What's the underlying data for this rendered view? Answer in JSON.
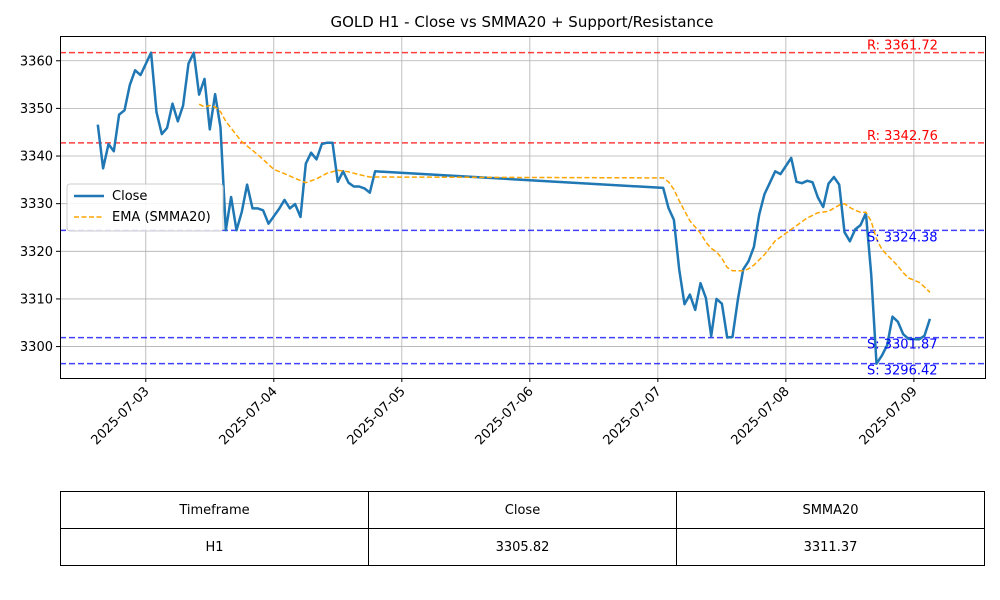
{
  "chart_data": {
    "type": "line",
    "title": "GOLD H1 - Close vs SMMA20 + Support/Resistance",
    "xlabel": "",
    "ylabel": "",
    "x_ticks": [
      "2025-07-03",
      "2025-07-04",
      "2025-07-05",
      "2025-07-06",
      "2025-07-07",
      "2025-07-08",
      "2025-07-09"
    ],
    "y_ticks": [
      3300,
      3310,
      3320,
      3330,
      3340,
      3350,
      3360
    ],
    "xlim": [
      "2025-07-02 07:55",
      "2025-07-09 13:20"
    ],
    "ylim": [
      3293.4,
      3365.2
    ],
    "grid": true,
    "legend_position": "center-left",
    "series": [
      {
        "name": "Close",
        "color": "#1f77b4",
        "style": "solid",
        "points": [
          [
            "2025-07-02 15:00",
            3346.6
          ],
          [
            "2025-07-02 16:00",
            3337.4
          ],
          [
            "2025-07-02 17:00",
            3342.5
          ],
          [
            "2025-07-02 18:00",
            3341.0
          ],
          [
            "2025-07-02 19:00",
            3348.7
          ],
          [
            "2025-07-02 20:00",
            3349.6
          ],
          [
            "2025-07-02 21:00",
            3354.9
          ],
          [
            "2025-07-02 22:00",
            3358.0
          ],
          [
            "2025-07-02 23:00",
            3357.0
          ],
          [
            "2025-07-03 01:00",
            3361.7
          ],
          [
            "2025-07-03 02:00",
            3349.2
          ],
          [
            "2025-07-03 03:00",
            3344.6
          ],
          [
            "2025-07-03 04:00",
            3345.9
          ],
          [
            "2025-07-03 05:00",
            3351.0
          ],
          [
            "2025-07-03 06:00",
            3347.3
          ],
          [
            "2025-07-03 07:00",
            3350.6
          ],
          [
            "2025-07-03 08:00",
            3359.4
          ],
          [
            "2025-07-03 09:00",
            3361.7
          ],
          [
            "2025-07-03 10:00",
            3352.9
          ],
          [
            "2025-07-03 11:00",
            3356.2
          ],
          [
            "2025-07-03 12:00",
            3345.6
          ],
          [
            "2025-07-03 13:00",
            3353.0
          ],
          [
            "2025-07-03 14:00",
            3346.0
          ],
          [
            "2025-07-03 15:00",
            3324.4
          ],
          [
            "2025-07-03 16:00",
            3331.4
          ],
          [
            "2025-07-03 17:00",
            3324.4
          ],
          [
            "2025-07-03 18:00",
            3328.3
          ],
          [
            "2025-07-03 19:00",
            3334.0
          ],
          [
            "2025-07-03 20:00",
            3329.0
          ],
          [
            "2025-07-03 21:00",
            3329.0
          ],
          [
            "2025-07-03 22:00",
            3328.6
          ],
          [
            "2025-07-03 23:00",
            3325.8
          ],
          [
            "2025-07-04 01:00",
            3328.9
          ],
          [
            "2025-07-04 02:00",
            3330.8
          ],
          [
            "2025-07-04 03:00",
            3329.0
          ],
          [
            "2025-07-04 04:00",
            3329.9
          ],
          [
            "2025-07-04 05:00",
            3327.2
          ],
          [
            "2025-07-04 06:00",
            3338.4
          ],
          [
            "2025-07-04 07:00",
            3340.7
          ],
          [
            "2025-07-04 08:00",
            3339.3
          ],
          [
            "2025-07-04 09:00",
            3342.5
          ],
          [
            "2025-07-04 10:00",
            3342.8
          ],
          [
            "2025-07-04 11:00",
            3342.8
          ],
          [
            "2025-07-04 12:00",
            3334.6
          ],
          [
            "2025-07-04 13:00",
            3336.8
          ],
          [
            "2025-07-04 14:00",
            3334.4
          ],
          [
            "2025-07-04 15:00",
            3333.6
          ],
          [
            "2025-07-04 16:00",
            3333.6
          ],
          [
            "2025-07-04 17:00",
            3333.2
          ],
          [
            "2025-07-04 18:00",
            3332.3
          ],
          [
            "2025-07-04 19:00",
            3336.8
          ],
          [
            "2025-07-07 01:00",
            3333.3
          ],
          [
            "2025-07-07 02:00",
            3329.1
          ],
          [
            "2025-07-07 03:00",
            3326.6
          ],
          [
            "2025-07-07 04:00",
            3316.2
          ],
          [
            "2025-07-07 05:00",
            3308.9
          ],
          [
            "2025-07-07 06:00",
            3310.9
          ],
          [
            "2025-07-07 07:00",
            3307.7
          ],
          [
            "2025-07-07 08:00",
            3313.3
          ],
          [
            "2025-07-07 09:00",
            3310.2
          ],
          [
            "2025-07-07 10:00",
            3302.2
          ],
          [
            "2025-07-07 11:00",
            3310.0
          ],
          [
            "2025-07-07 12:00",
            3309.0
          ],
          [
            "2025-07-07 13:00",
            3301.9
          ],
          [
            "2025-07-07 14:00",
            3302.0
          ],
          [
            "2025-07-07 15:00",
            3309.9
          ],
          [
            "2025-07-07 16:00",
            3316.2
          ],
          [
            "2025-07-07 17:00",
            3317.9
          ],
          [
            "2025-07-07 18:00",
            3320.9
          ],
          [
            "2025-07-07 19:00",
            3327.7
          ],
          [
            "2025-07-07 20:00",
            3332.0
          ],
          [
            "2025-07-07 21:00",
            3334.4
          ],
          [
            "2025-07-07 22:00",
            3336.8
          ],
          [
            "2025-07-07 23:00",
            3336.2
          ],
          [
            "2025-07-08 01:00",
            3339.6
          ],
          [
            "2025-07-08 02:00",
            3334.6
          ],
          [
            "2025-07-08 03:00",
            3334.3
          ],
          [
            "2025-07-08 04:00",
            3334.8
          ],
          [
            "2025-07-08 05:00",
            3334.5
          ],
          [
            "2025-07-08 06:00",
            3331.3
          ],
          [
            "2025-07-08 07:00",
            3329.3
          ],
          [
            "2025-07-08 08:00",
            3334.2
          ],
          [
            "2025-07-08 09:00",
            3335.6
          ],
          [
            "2025-07-08 10:00",
            3334.0
          ],
          [
            "2025-07-08 11:00",
            3324.0
          ],
          [
            "2025-07-08 12:00",
            3322.1
          ],
          [
            "2025-07-08 13:00",
            3324.6
          ],
          [
            "2025-07-08 14:00",
            3325.5
          ],
          [
            "2025-07-08 15:00",
            3328.0
          ],
          [
            "2025-07-08 16:00",
            3315.2
          ],
          [
            "2025-07-08 17:00",
            3296.4
          ],
          [
            "2025-07-08 18:00",
            3298.1
          ],
          [
            "2025-07-08 19:00",
            3300.3
          ],
          [
            "2025-07-08 20:00",
            3306.3
          ],
          [
            "2025-07-08 21:00",
            3305.2
          ],
          [
            "2025-07-08 22:00",
            3302.6
          ],
          [
            "2025-07-08 23:00",
            3301.6
          ],
          [
            "2025-07-09 01:00",
            3301.5
          ],
          [
            "2025-07-09 02:00",
            3302.3
          ],
          [
            "2025-07-09 03:00",
            3305.8
          ]
        ]
      },
      {
        "name": "EMA (SMMA20)",
        "color": "#ffa500",
        "style": "dashed",
        "points": [
          [
            "2025-07-03 10:00",
            3350.9
          ],
          [
            "2025-07-03 11:00",
            3350.3
          ],
          [
            "2025-07-03 12:00",
            3350.6
          ],
          [
            "2025-07-03 13:00",
            3350.3
          ],
          [
            "2025-07-03 14:00",
            3349.3
          ],
          [
            "2025-07-03 15:00",
            3347.3
          ],
          [
            "2025-07-03 17:00",
            3344.4
          ],
          [
            "2025-07-03 18:00",
            3343.0
          ],
          [
            "2025-07-03 20:00",
            3341.2
          ],
          [
            "2025-07-03 22:00",
            3339.3
          ],
          [
            "2025-07-04 00:00",
            3337.2
          ],
          [
            "2025-07-04 02:00",
            3336.3
          ],
          [
            "2025-07-04 04:00",
            3335.3
          ],
          [
            "2025-07-04 06:00",
            3334.4
          ],
          [
            "2025-07-04 08:00",
            3335.2
          ],
          [
            "2025-07-04 10:00",
            3336.4
          ],
          [
            "2025-07-04 12:00",
            3337.0
          ],
          [
            "2025-07-04 14:00",
            3336.7
          ],
          [
            "2025-07-04 16:00",
            3336.1
          ],
          [
            "2025-07-04 18:00",
            3335.6
          ],
          [
            "2025-07-04 19:00",
            3335.6
          ],
          [
            "2025-07-07 01:00",
            3335.4
          ],
          [
            "2025-07-07 02:00",
            3334.6
          ],
          [
            "2025-07-07 03:00",
            3333.0
          ],
          [
            "2025-07-07 04:00",
            3330.6
          ],
          [
            "2025-07-07 06:00",
            3326.4
          ],
          [
            "2025-07-07 08:00",
            3323.8
          ],
          [
            "2025-07-07 09:00",
            3321.9
          ],
          [
            "2025-07-07 10:00",
            3320.6
          ],
          [
            "2025-07-07 11:00",
            3319.9
          ],
          [
            "2025-07-07 12:00",
            3318.5
          ],
          [
            "2025-07-07 13:00",
            3316.6
          ],
          [
            "2025-07-07 14:00",
            3315.9
          ],
          [
            "2025-07-07 16:00",
            3315.9
          ],
          [
            "2025-07-07 17:00",
            3316.3
          ],
          [
            "2025-07-07 18:00",
            3317.1
          ],
          [
            "2025-07-07 20:00",
            3319.3
          ],
          [
            "2025-07-07 22:00",
            3322.2
          ],
          [
            "2025-07-08 00:00",
            3323.8
          ],
          [
            "2025-07-08 02:00",
            3325.4
          ],
          [
            "2025-07-08 04:00",
            3327.0
          ],
          [
            "2025-07-08 06:00",
            3328.1
          ],
          [
            "2025-07-08 08:00",
            3328.4
          ],
          [
            "2025-07-08 10:00",
            3329.7
          ],
          [
            "2025-07-08 11:00",
            3330.0
          ],
          [
            "2025-07-08 12:00",
            3329.2
          ],
          [
            "2025-07-08 13:00",
            3328.6
          ],
          [
            "2025-07-08 14:00",
            3328.2
          ],
          [
            "2025-07-08 15:00",
            3328.2
          ],
          [
            "2025-07-08 16:00",
            3326.3
          ],
          [
            "2025-07-08 17:00",
            3322.6
          ],
          [
            "2025-07-08 18:00",
            3320.4
          ],
          [
            "2025-07-08 19:00",
            3319.2
          ],
          [
            "2025-07-08 20:00",
            3318.1
          ],
          [
            "2025-07-08 21:00",
            3316.9
          ],
          [
            "2025-07-08 22:00",
            3315.5
          ],
          [
            "2025-07-08 23:00",
            3314.4
          ],
          [
            "2025-07-09 01:00",
            3313.5
          ],
          [
            "2025-07-09 02:00",
            3312.5
          ],
          [
            "2025-07-09 03:00",
            3311.4
          ]
        ]
      }
    ],
    "levels": [
      {
        "kind": "resistance",
        "value": 3361.72,
        "label": "R: 3361.72",
        "color": "#ff0000"
      },
      {
        "kind": "resistance",
        "value": 3342.76,
        "label": "R: 3342.76",
        "color": "#ff0000"
      },
      {
        "kind": "support",
        "value": 3324.38,
        "label": "S: 3324.38",
        "color": "#0000ff"
      },
      {
        "kind": "support",
        "value": 3301.87,
        "label": "S: 3301.87",
        "color": "#0000ff"
      },
      {
        "kind": "support",
        "value": 3296.42,
        "label": "S: 3296.42",
        "color": "#0000ff"
      }
    ]
  },
  "table": {
    "headers": [
      "Timeframe",
      "Close",
      "SMMA20"
    ],
    "rows": [
      [
        "H1",
        "3305.82",
        "3311.37"
      ]
    ]
  }
}
